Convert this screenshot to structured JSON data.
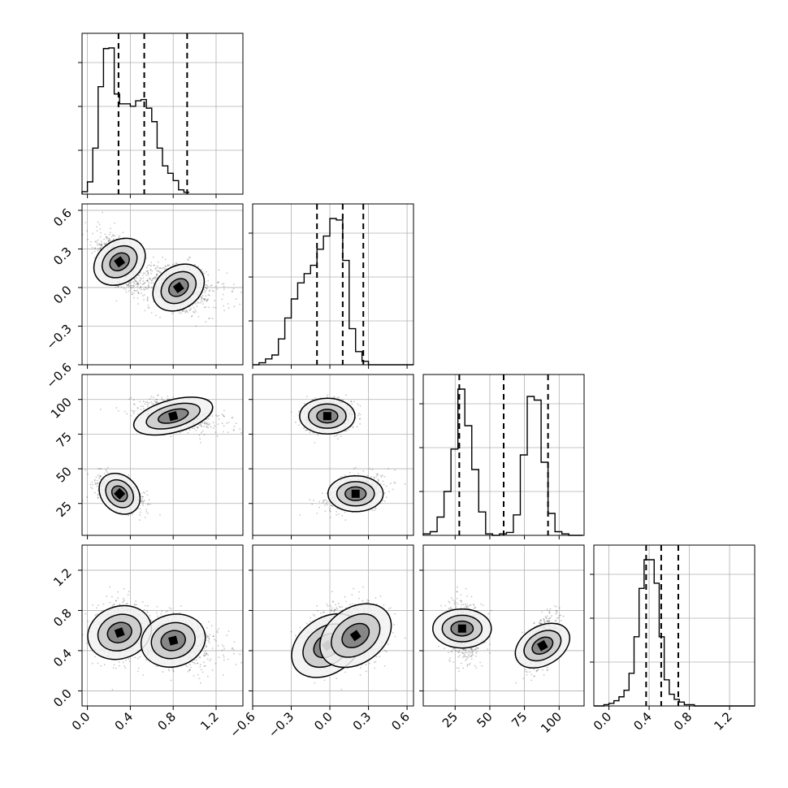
{
  "figure": {
    "type": "corner-plot"
  },
  "chart_data": {
    "type": "scatter",
    "parameters": [
      {
        "index": 0,
        "range": [
          -0.05,
          1.45
        ],
        "ticks": [
          0.0,
          0.4,
          0.8,
          1.2
        ],
        "tick_labels": [
          "0.0",
          "0.4",
          "0.8",
          "1.2"
        ],
        "quantiles": [
          0.29,
          0.53,
          0.93
        ],
        "histogram": {
          "edges_start": -0.05,
          "bin_width": 0.05,
          "counts": [
            4,
            20,
            75,
            175,
            237,
            238,
            163,
            147,
            147,
            143,
            152,
            154,
            140,
            118,
            75,
            46,
            34,
            22,
            7,
            3
          ]
        }
      },
      {
        "index": 1,
        "range": [
          -0.6,
          0.65
        ],
        "ticks": [
          -0.6,
          -0.3,
          0.0,
          0.3,
          0.6
        ],
        "tick_labels": [
          "−0.6",
          "−0.3",
          "0.0",
          "0.3",
          "0.6"
        ],
        "quantiles": [
          -0.1,
          0.1,
          0.26
        ],
        "histogram": {
          "edges_start": -0.6,
          "bin_width": 0.05,
          "counts": [
            0,
            4,
            12,
            20,
            53,
            96,
            135,
            168,
            187,
            204,
            237,
            264,
            300,
            297,
            214,
            74,
            27,
            7,
            0,
            0,
            0,
            0,
            0,
            0,
            0
          ]
        }
      },
      {
        "index": 2,
        "range": [
          2,
          118
        ],
        "ticks": [
          25,
          50,
          75,
          100
        ],
        "tick_labels": [
          "25",
          "50",
          "75",
          "100"
        ],
        "quantiles": [
          28,
          60,
          92
        ],
        "histogram": {
          "edges_start": 2,
          "bin_width": 5,
          "counts": [
            2,
            5,
            25,
            60,
            118,
            200,
            150,
            90,
            32,
            2,
            0,
            2,
            4,
            28,
            110,
            190,
            185,
            100,
            30,
            5,
            2,
            0,
            0
          ]
        }
      },
      {
        "index": 3,
        "range": [
          -0.15,
          1.45
        ],
        "ticks": [
          0.0,
          0.4,
          0.8,
          1.2
        ],
        "tick_labels": [
          "0.0",
          "0.4",
          "0.8",
          "1.2"
        ],
        "quantiles": [
          0.37,
          0.52,
          0.69
        ],
        "histogram": {
          "edges_start": -0.15,
          "bin_width": 0.05,
          "counts": [
            0,
            0,
            1,
            2,
            4,
            7,
            12,
            25,
            53,
            90,
            112,
            112,
            94,
            53,
            20,
            9,
            5,
            3,
            1,
            1,
            0,
            0,
            0,
            0,
            0,
            0,
            0,
            0,
            0,
            0,
            0,
            0
          ]
        }
      }
    ],
    "modes": [
      {
        "means": [
          0.3,
          0.2,
          32,
          0.6
        ],
        "weight": 0.5
      },
      {
        "means": [
          0.85,
          0.0,
          88,
          0.48
        ],
        "weight": 0.5
      }
    ],
    "panels": [
      {
        "row": 1,
        "col": 0,
        "contour_levels": 3,
        "density_centers": [
          [
            0.3,
            0.2
          ],
          [
            0.85,
            0.0
          ]
        ]
      },
      {
        "row": 2,
        "col": 0,
        "contour_levels": 3,
        "density_centers": [
          [
            0.3,
            32
          ],
          [
            0.8,
            88
          ]
        ]
      },
      {
        "row": 2,
        "col": 1,
        "contour_levels": 3,
        "density_centers": [
          [
            -0.02,
            88
          ],
          [
            0.2,
            32
          ]
        ]
      },
      {
        "row": 3,
        "col": 0,
        "contour_levels": 3,
        "density_centers": [
          [
            0.3,
            0.58
          ],
          [
            0.8,
            0.5
          ]
        ]
      },
      {
        "row": 3,
        "col": 1,
        "contour_levels": 3,
        "density_centers": [
          [
            -0.02,
            0.45
          ],
          [
            0.2,
            0.55
          ]
        ]
      },
      {
        "row": 3,
        "col": 2,
        "contour_levels": 3,
        "density_centers": [
          [
            30,
            0.62
          ],
          [
            88,
            0.45
          ]
        ]
      }
    ],
    "grid": true,
    "xlabel": "",
    "ylabel": "",
    "title": ""
  }
}
